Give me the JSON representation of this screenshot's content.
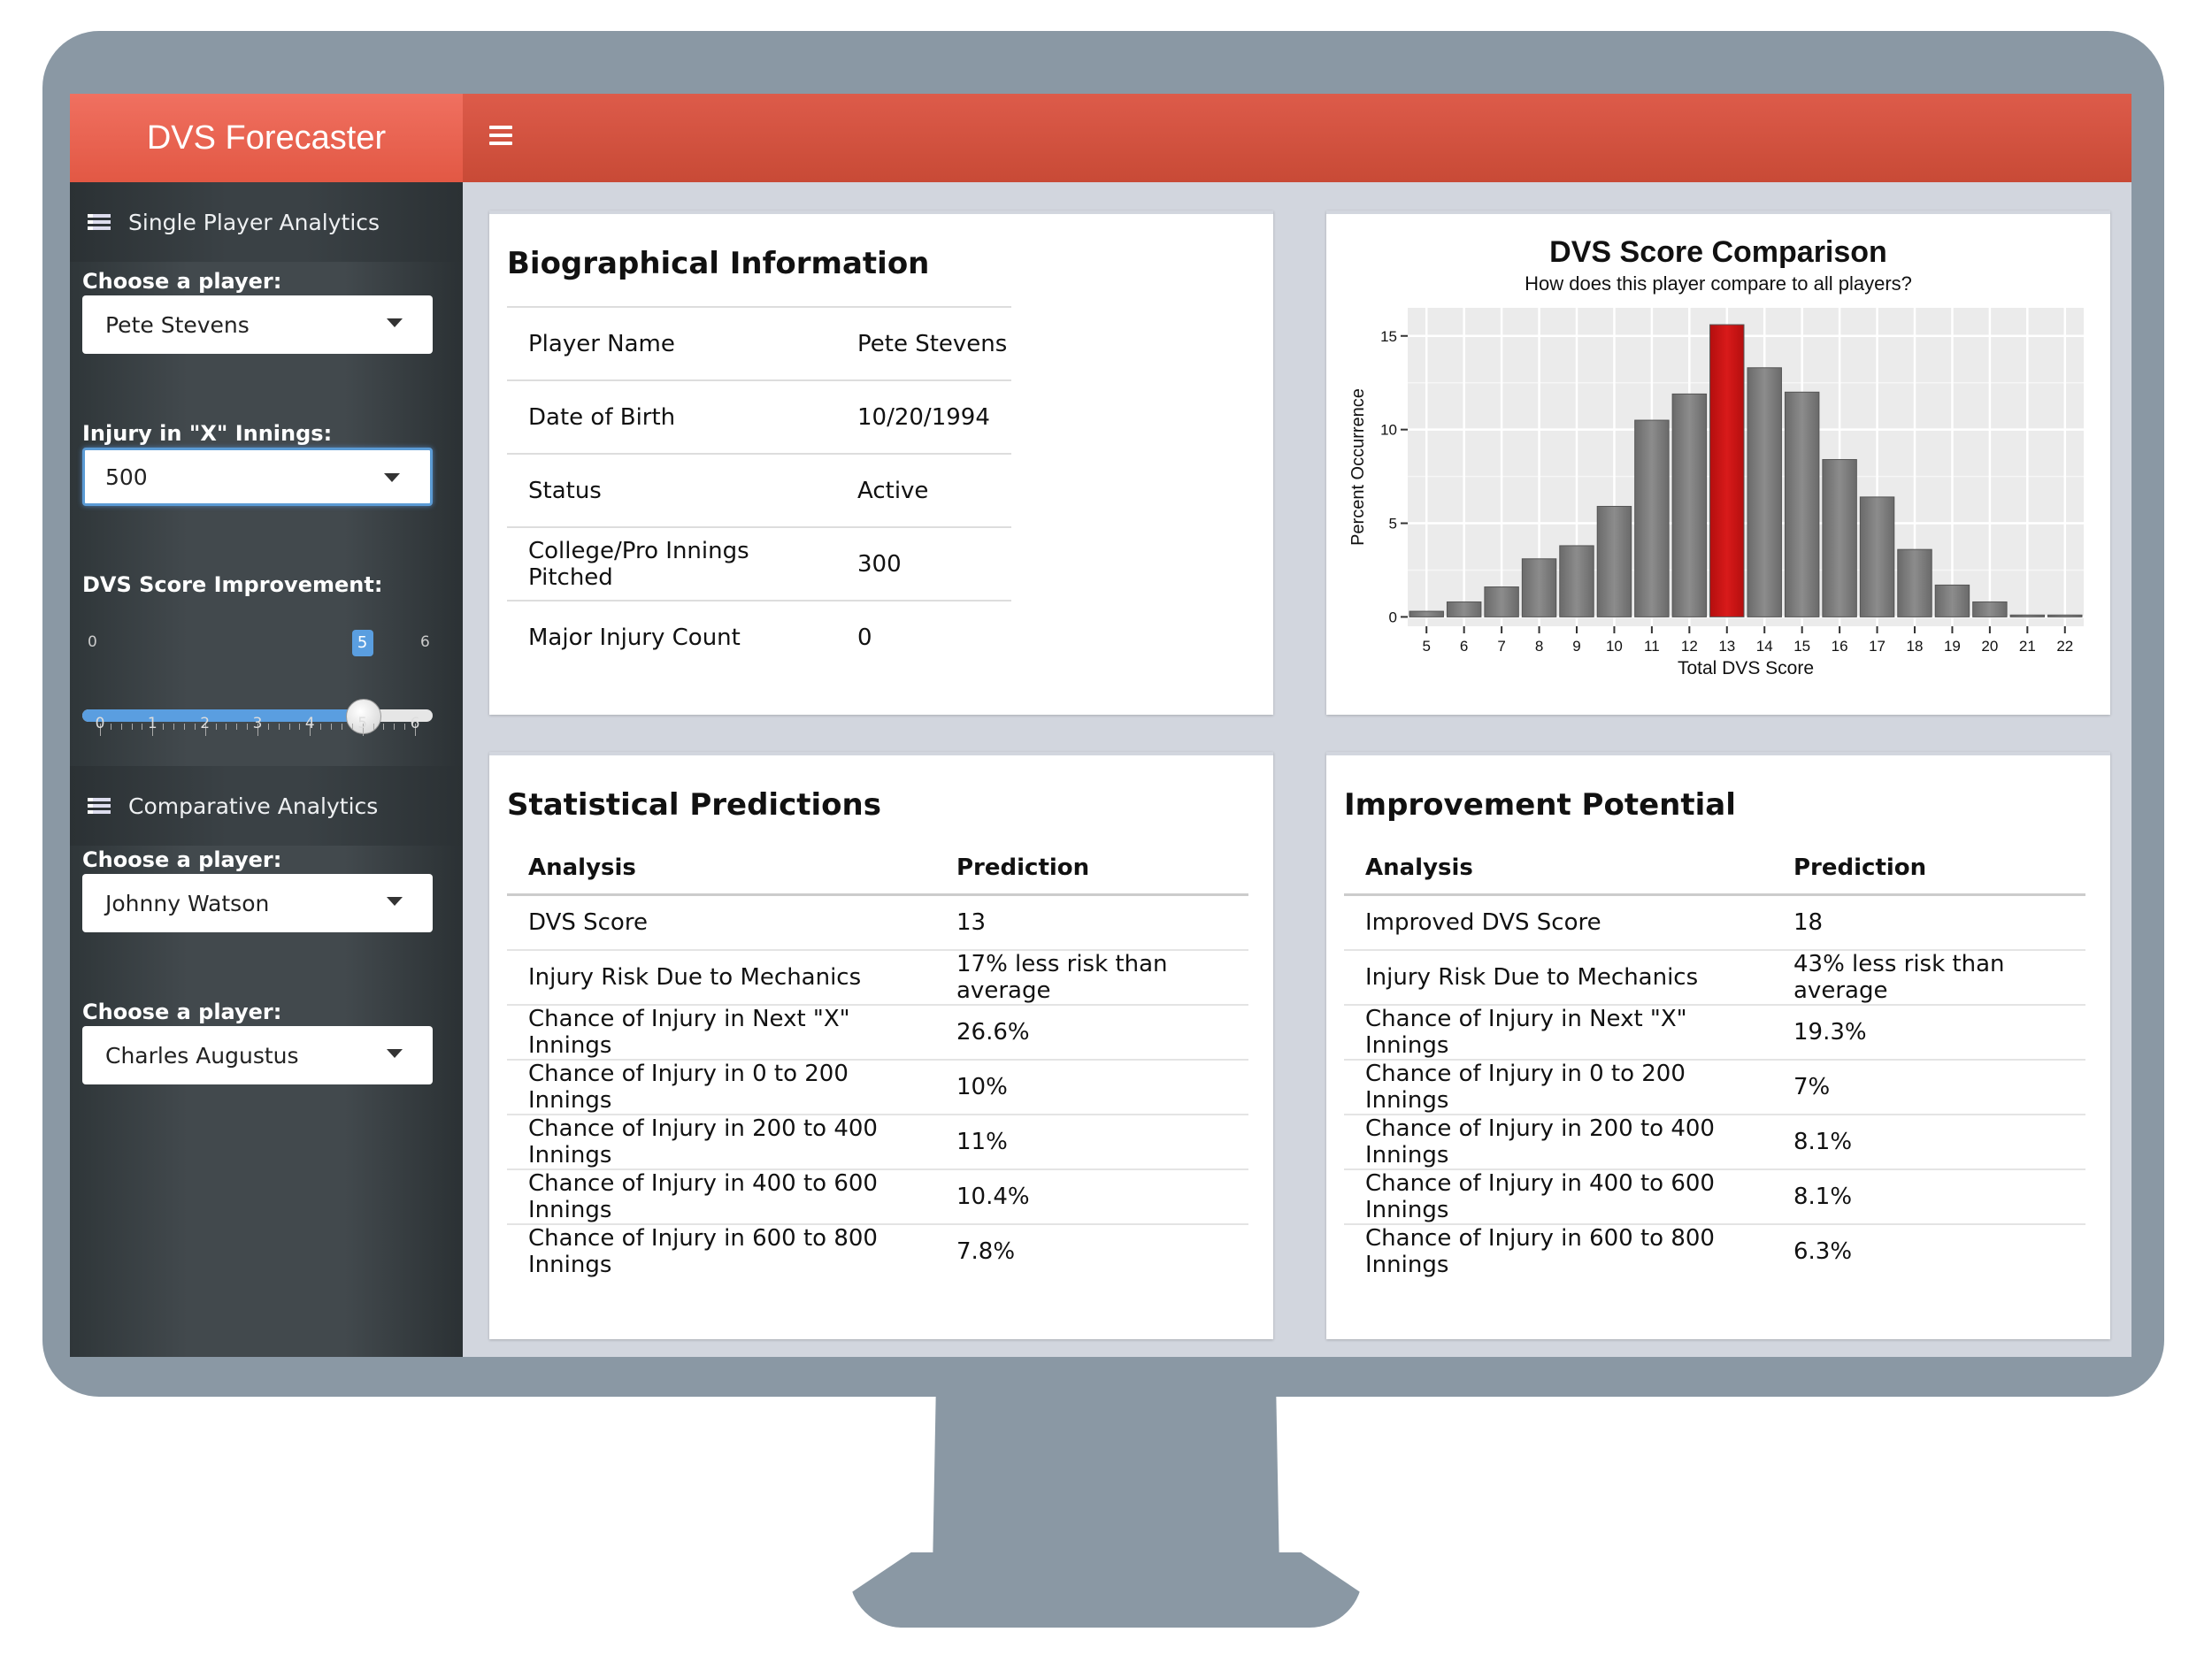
{
  "app": {
    "title": "DVS Forecaster"
  },
  "sidebar": {
    "single_menu": "Single Player Analytics",
    "player_label": "Choose a player:",
    "player_value": "Pete Stevens",
    "innings_label": "Injury in \"X\" Innings:",
    "innings_value": "500",
    "improvement_label": "DVS Score Improvement:",
    "slider": {
      "min": "0",
      "max": "6",
      "value": 5,
      "value_label": "5",
      "ticks": [
        "0",
        "1",
        "2",
        "3",
        "4",
        "5",
        "6"
      ]
    },
    "comparative_menu": "Comparative Analytics",
    "compare_a_label": "Choose a player:",
    "compare_a_value": "Johnny Watson",
    "compare_b_label": "Choose a player:",
    "compare_b_value": "Charles Augustus"
  },
  "bio": {
    "title": "Biographical Information",
    "rows": [
      {
        "label": "Player Name",
        "value": "Pete Stevens"
      },
      {
        "label": "Date of Birth",
        "value": "10/20/1994"
      },
      {
        "label": "Status",
        "value": "Active"
      },
      {
        "label": "College/Pro Innings Pitched",
        "value": "300"
      },
      {
        "label": "Major Injury Count",
        "value": "0"
      }
    ]
  },
  "stats": {
    "title": "Statistical Predictions",
    "col_analysis": "Analysis",
    "col_prediction": "Prediction",
    "rows": [
      {
        "label": "DVS Score",
        "value": "13"
      },
      {
        "label": "Injury Risk Due to Mechanics",
        "value": "17% less risk than average"
      },
      {
        "label": "Chance of Injury in Next \"X\" Innings",
        "value": "26.6%"
      },
      {
        "label": "Chance of Injury in 0 to 200 Innings",
        "value": "10%"
      },
      {
        "label": "Chance of Injury in 200 to 400 Innings",
        "value": "11%"
      },
      {
        "label": "Chance of Injury in 400 to 600 Innings",
        "value": "10.4%"
      },
      {
        "label": "Chance of Injury in 600 to 800 Innings",
        "value": "7.8%"
      }
    ]
  },
  "improve": {
    "title": "Improvement Potential",
    "col_analysis": "Analysis",
    "col_prediction": "Prediction",
    "rows": [
      {
        "label": "Improved DVS Score",
        "value": "18"
      },
      {
        "label": "Injury Risk Due to Mechanics",
        "value": "43% less risk than average"
      },
      {
        "label": "Chance of Injury in Next \"X\" Innings",
        "value": "19.3%"
      },
      {
        "label": "Chance of Injury in 0 to 200 Innings",
        "value": "7%"
      },
      {
        "label": "Chance of Injury in 200 to 400 Innings",
        "value": "8.1%"
      },
      {
        "label": "Chance of Injury in 400 to 600 Innings",
        "value": "8.1%"
      },
      {
        "label": "Chance of Injury in 600 to 800 Innings",
        "value": "6.3%"
      }
    ]
  },
  "chart_data": {
    "type": "bar",
    "title": "DVS Score Comparison",
    "subtitle": "How does this player compare to all players?",
    "xlabel": "Total DVS Score",
    "ylabel": "Percent Occurrence",
    "categories": [
      "5",
      "6",
      "7",
      "8",
      "9",
      "10",
      "11",
      "12",
      "13",
      "14",
      "15",
      "16",
      "17",
      "18",
      "19",
      "20",
      "21",
      "22"
    ],
    "values": [
      0.3,
      0.8,
      1.6,
      3.1,
      3.8,
      5.9,
      10.5,
      11.9,
      15.6,
      13.3,
      12.0,
      8.4,
      6.4,
      3.6,
      1.7,
      0.8,
      0.1,
      0.1
    ],
    "highlight_category": "13",
    "yticks": [
      0,
      5,
      10,
      15
    ],
    "ylim": [
      -0.5,
      16.5
    ],
    "colors": {
      "bar": "#7a7a7a",
      "highlight": "#cc1111"
    }
  }
}
